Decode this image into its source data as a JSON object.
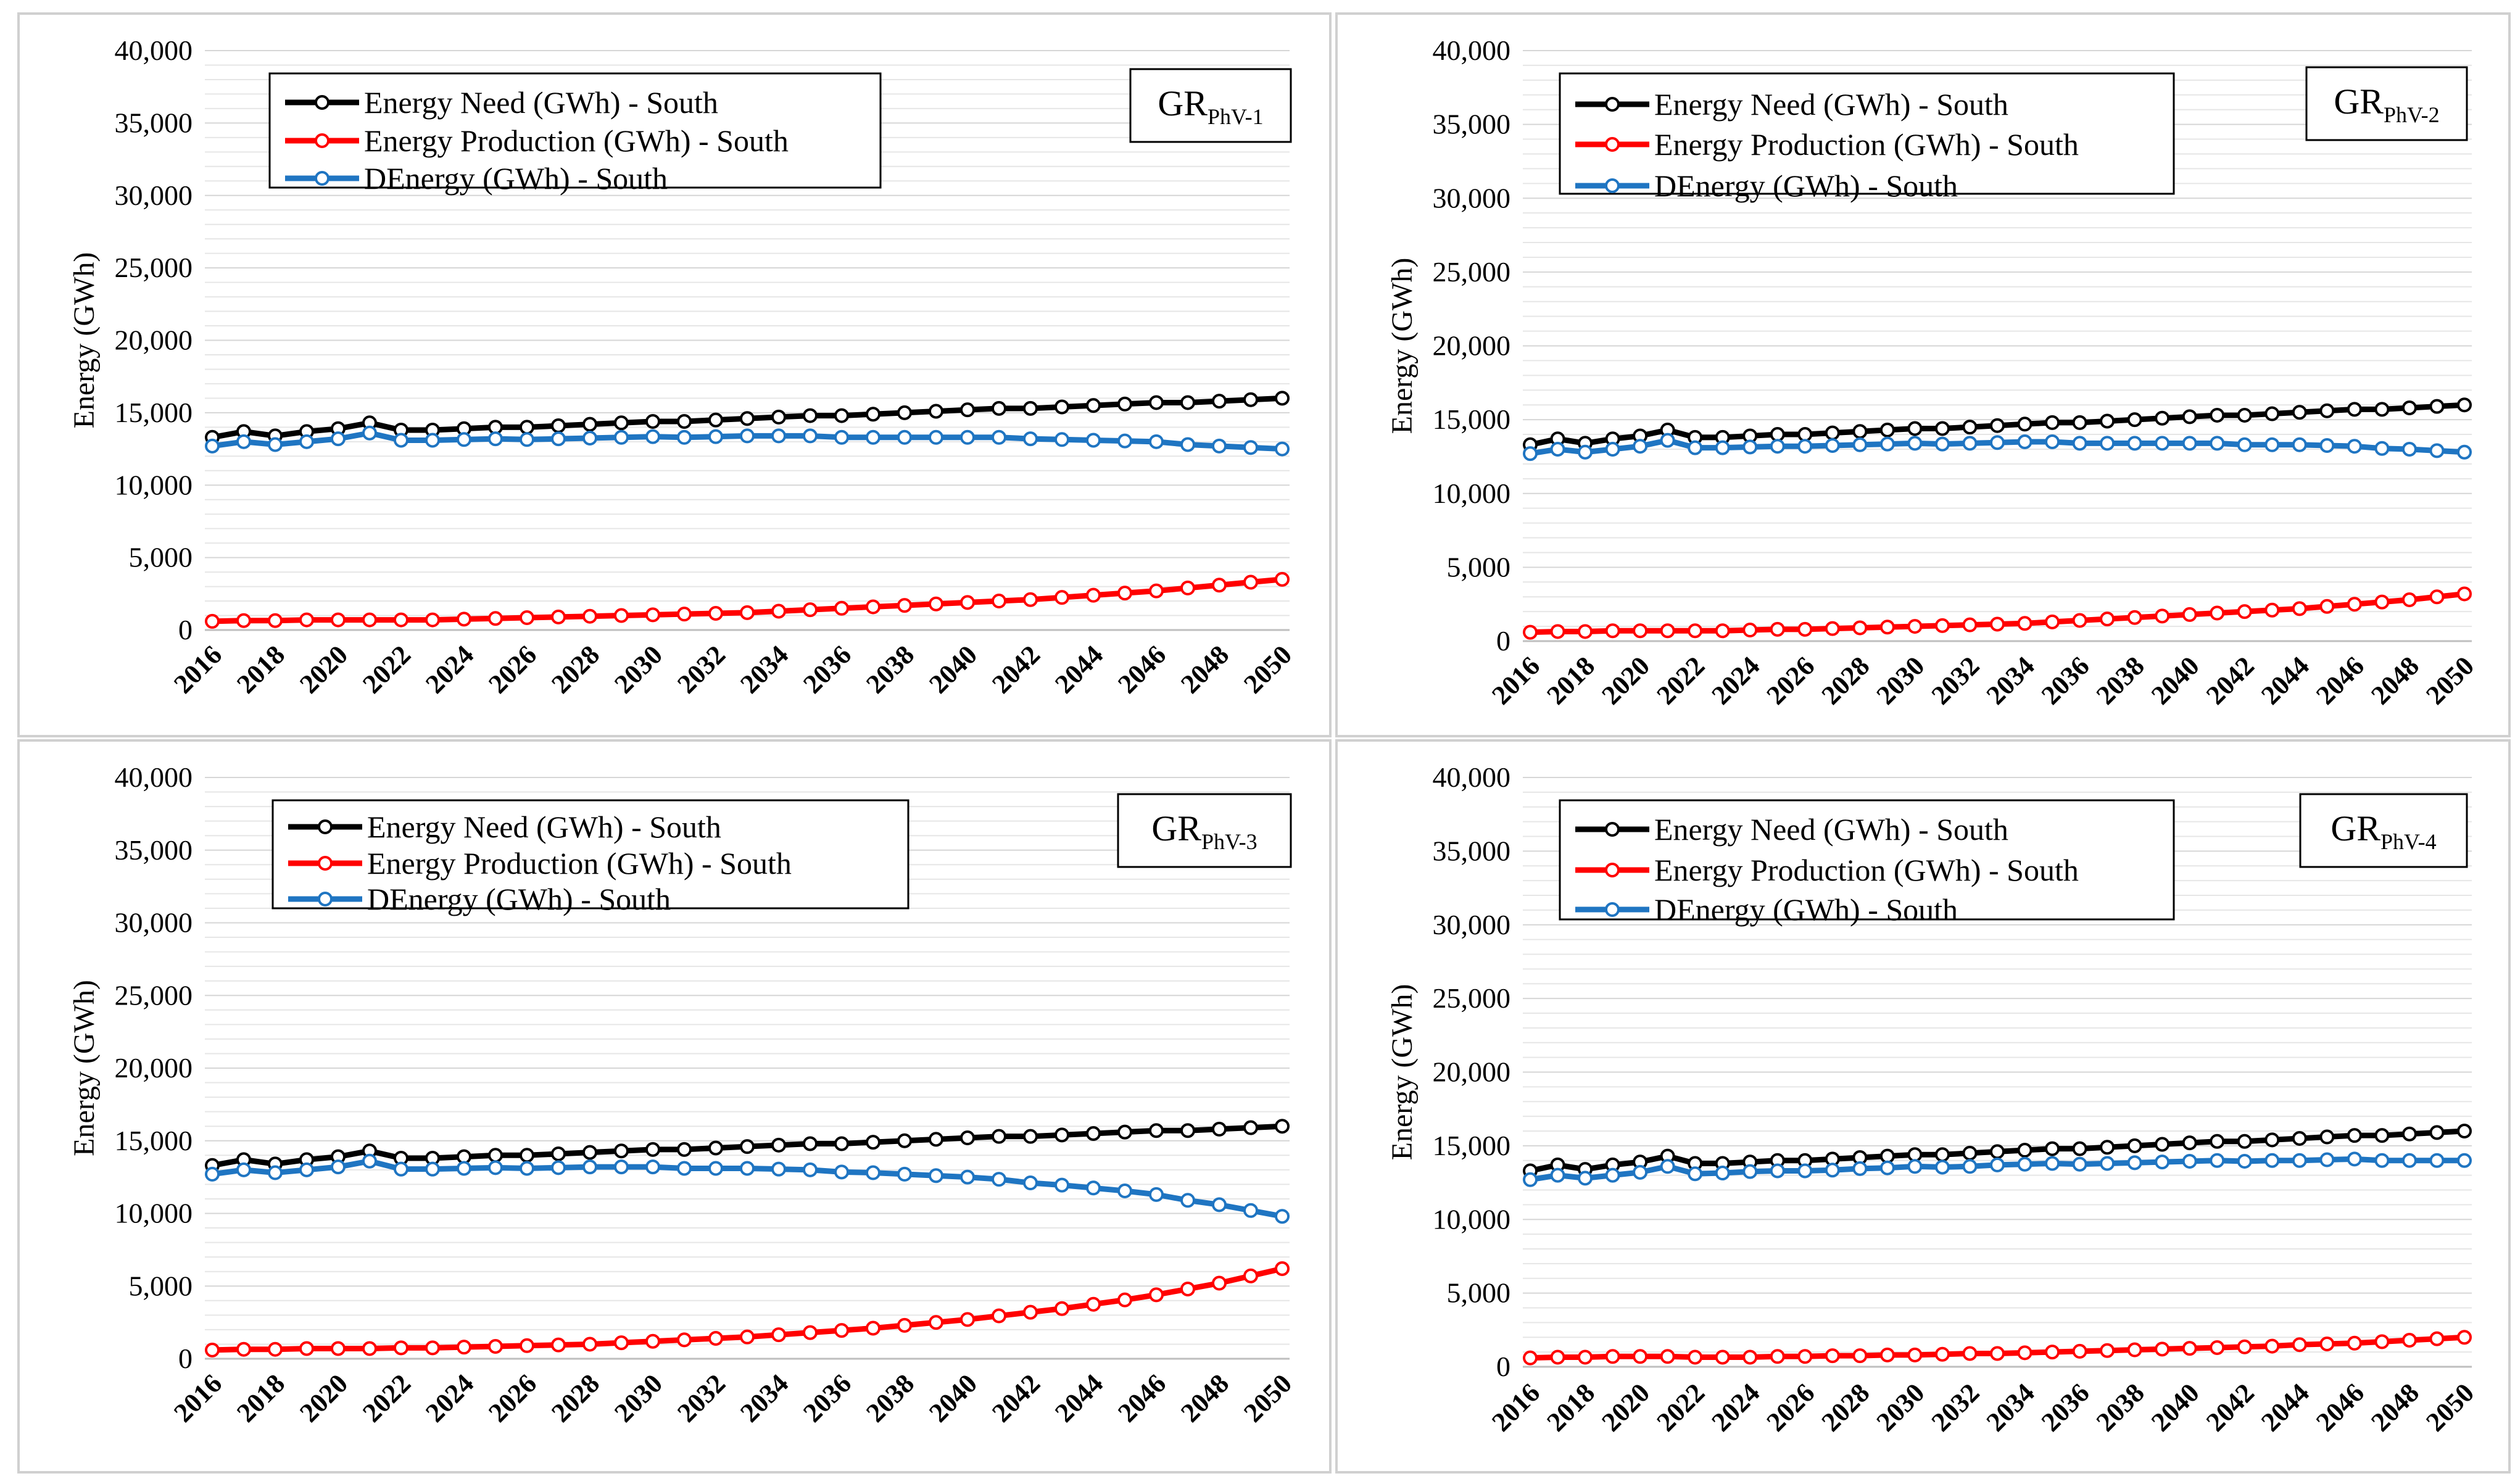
{
  "chart_data": [
    {
      "type": "line",
      "tag": {
        "main": "GR",
        "sub": "PhV-1"
      },
      "ylabel": "Energy (GWh)",
      "ylim": [
        0,
        40000
      ],
      "y_ticks": [
        "0",
        "5,000",
        "10,000",
        "15,000",
        "20,000",
        "25,000",
        "30,000",
        "35,000",
        "40,000"
      ],
      "x_ticks": [
        "2016",
        "2018",
        "2020",
        "2022",
        "2024",
        "2026",
        "2028",
        "2030",
        "2032",
        "2034",
        "2036",
        "2038",
        "2040",
        "2042",
        "2044",
        "2046",
        "2048",
        "2050"
      ],
      "grid": true,
      "legend_position": "top-left",
      "x": [
        2016,
        2017,
        2018,
        2019,
        2020,
        2021,
        2022,
        2023,
        2024,
        2025,
        2026,
        2027,
        2028,
        2029,
        2030,
        2031,
        2032,
        2033,
        2034,
        2035,
        2036,
        2037,
        2038,
        2039,
        2040,
        2041,
        2042,
        2043,
        2044,
        2045,
        2046,
        2047,
        2048,
        2049,
        2050
      ],
      "series": [
        {
          "name": "Energy Need (GWh) -  South",
          "color": "#000000",
          "values": [
            13300,
            13700,
            13400,
            13700,
            13900,
            14300,
            13800,
            13800,
            13900,
            14000,
            14000,
            14100,
            14200,
            14300,
            14400,
            14400,
            14500,
            14600,
            14700,
            14800,
            14800,
            14900,
            15000,
            15100,
            15200,
            15300,
            15300,
            15400,
            15500,
            15600,
            15700,
            15700,
            15800,
            15900,
            16000
          ]
        },
        {
          "name": "Energy Production (GWh) -  South",
          "color": "#ff0000",
          "values": [
            600,
            650,
            650,
            700,
            700,
            700,
            700,
            700,
            750,
            800,
            850,
            900,
            950,
            1000,
            1050,
            1100,
            1150,
            1200,
            1300,
            1400,
            1500,
            1600,
            1700,
            1800,
            1900,
            2000,
            2100,
            2250,
            2400,
            2550,
            2700,
            2900,
            3100,
            3300,
            3500
          ]
        },
        {
          "name": "DEnergy  (GWh) -  South",
          "color": "#1f75c2",
          "values": [
            12700,
            13000,
            12800,
            13000,
            13200,
            13600,
            13100,
            13100,
            13150,
            13200,
            13150,
            13200,
            13250,
            13300,
            13350,
            13300,
            13350,
            13400,
            13400,
            13400,
            13300,
            13300,
            13300,
            13300,
            13300,
            13300,
            13200,
            13150,
            13100,
            13050,
            13000,
            12800,
            12700,
            12600,
            12500
          ]
        }
      ]
    },
    {
      "type": "line",
      "tag": {
        "main": "GR",
        "sub": "PhV-2"
      },
      "ylabel": "Energy (GWh)",
      "ylim": [
        0,
        40000
      ],
      "y_ticks": [
        "0",
        "5,000",
        "10,000",
        "15,000",
        "20,000",
        "25,000",
        "30,000",
        "35,000",
        "40,000"
      ],
      "x_ticks": [
        "2016",
        "2018",
        "2020",
        "2022",
        "2024",
        "2026",
        "2028",
        "2030",
        "2032",
        "2034",
        "2036",
        "2038",
        "2040",
        "2042",
        "2044",
        "2046",
        "2048",
        "2050"
      ],
      "grid": true,
      "legend_position": "top-left",
      "x": [
        2016,
        2017,
        2018,
        2019,
        2020,
        2021,
        2022,
        2023,
        2024,
        2025,
        2026,
        2027,
        2028,
        2029,
        2030,
        2031,
        2032,
        2033,
        2034,
        2035,
        2036,
        2037,
        2038,
        2039,
        2040,
        2041,
        2042,
        2043,
        2044,
        2045,
        2046,
        2047,
        2048,
        2049,
        2050
      ],
      "series": [
        {
          "name": "Energy Need (GWh) -  South",
          "color": "#000000",
          "values": [
            13300,
            13700,
            13400,
            13700,
            13900,
            14300,
            13800,
            13800,
            13900,
            14000,
            14000,
            14100,
            14200,
            14300,
            14400,
            14400,
            14500,
            14600,
            14700,
            14800,
            14800,
            14900,
            15000,
            15100,
            15200,
            15300,
            15300,
            15400,
            15500,
            15600,
            15700,
            15700,
            15800,
            15900,
            16000
          ]
        },
        {
          "name": "Energy Production (GWh) -  South",
          "color": "#ff0000",
          "values": [
            600,
            650,
            650,
            700,
            700,
            700,
            700,
            700,
            750,
            800,
            800,
            850,
            900,
            950,
            1000,
            1050,
            1100,
            1150,
            1200,
            1300,
            1400,
            1500,
            1600,
            1700,
            1800,
            1900,
            2000,
            2100,
            2200,
            2350,
            2500,
            2650,
            2800,
            3000,
            3200
          ]
        },
        {
          "name": "DEnergy  (GWh) -  South",
          "color": "#1f75c2",
          "values": [
            12700,
            13000,
            12800,
            13000,
            13200,
            13600,
            13100,
            13100,
            13150,
            13200,
            13200,
            13250,
            13300,
            13350,
            13400,
            13350,
            13400,
            13450,
            13500,
            13500,
            13400,
            13400,
            13400,
            13400,
            13400,
            13400,
            13300,
            13300,
            13300,
            13250,
            13200,
            13050,
            13000,
            12900,
            12800
          ]
        }
      ]
    },
    {
      "type": "line",
      "tag": {
        "main": "GR",
        "sub": "PhV-3"
      },
      "ylabel": "Energy (GWh)",
      "ylim": [
        0,
        40000
      ],
      "y_ticks": [
        "0",
        "5,000",
        "10,000",
        "15,000",
        "20,000",
        "25,000",
        "30,000",
        "35,000",
        "40,000"
      ],
      "x_ticks": [
        "2016",
        "2018",
        "2020",
        "2022",
        "2024",
        "2026",
        "2028",
        "2030",
        "2032",
        "2034",
        "2036",
        "2038",
        "2040",
        "2042",
        "2044",
        "2046",
        "2048",
        "2050"
      ],
      "grid": true,
      "legend_position": "top-left",
      "x": [
        2016,
        2017,
        2018,
        2019,
        2020,
        2021,
        2022,
        2023,
        2024,
        2025,
        2026,
        2027,
        2028,
        2029,
        2030,
        2031,
        2032,
        2033,
        2034,
        2035,
        2036,
        2037,
        2038,
        2039,
        2040,
        2041,
        2042,
        2043,
        2044,
        2045,
        2046,
        2047,
        2048,
        2049,
        2050
      ],
      "series": [
        {
          "name": "Energy Need (GWh) -  South",
          "color": "#000000",
          "values": [
            13300,
            13700,
            13400,
            13700,
            13900,
            14300,
            13800,
            13800,
            13900,
            14000,
            14000,
            14100,
            14200,
            14300,
            14400,
            14400,
            14500,
            14600,
            14700,
            14800,
            14800,
            14900,
            15000,
            15100,
            15200,
            15300,
            15300,
            15400,
            15500,
            15600,
            15700,
            15700,
            15800,
            15900,
            16000
          ]
        },
        {
          "name": "Energy Production (GWh) -  South",
          "color": "#ff0000",
          "values": [
            600,
            650,
            650,
            700,
            700,
            700,
            750,
            750,
            800,
            850,
            900,
            950,
            1000,
            1100,
            1200,
            1300,
            1400,
            1500,
            1650,
            1800,
            1950,
            2100,
            2300,
            2500,
            2700,
            2950,
            3200,
            3450,
            3750,
            4050,
            4400,
            4800,
            5200,
            5700,
            6200
          ]
        },
        {
          "name": "DEnergy  (GWh) -  South",
          "color": "#1f75c2",
          "values": [
            12700,
            13000,
            12800,
            13000,
            13200,
            13600,
            13050,
            13050,
            13100,
            13150,
            13100,
            13150,
            13200,
            13200,
            13200,
            13100,
            13100,
            13100,
            13050,
            13000,
            12850,
            12800,
            12700,
            12600,
            12500,
            12350,
            12100,
            11950,
            11750,
            11550,
            11300,
            10900,
            10600,
            10200,
            9800
          ]
        }
      ]
    },
    {
      "type": "line",
      "tag": {
        "main": "GR",
        "sub": "PhV-4"
      },
      "ylabel": "Energy (GWh)",
      "ylim": [
        0,
        40000
      ],
      "y_ticks": [
        "0",
        "5,000",
        "10,000",
        "15,000",
        "20,000",
        "25,000",
        "30,000",
        "35,000",
        "40,000"
      ],
      "x_ticks": [
        "2016",
        "2018",
        "2020",
        "2022",
        "2024",
        "2026",
        "2028",
        "2030",
        "2032",
        "2034",
        "2036",
        "2038",
        "2040",
        "2042",
        "2044",
        "2046",
        "2048",
        "2050"
      ],
      "grid": true,
      "legend_position": "top-left",
      "x": [
        2016,
        2017,
        2018,
        2019,
        2020,
        2021,
        2022,
        2023,
        2024,
        2025,
        2026,
        2027,
        2028,
        2029,
        2030,
        2031,
        2032,
        2033,
        2034,
        2035,
        2036,
        2037,
        2038,
        2039,
        2040,
        2041,
        2042,
        2043,
        2044,
        2045,
        2046,
        2047,
        2048,
        2049,
        2050
      ],
      "series": [
        {
          "name": "Energy Need (GWh) -  South",
          "color": "#000000",
          "values": [
            13300,
            13700,
            13400,
            13700,
            13900,
            14300,
            13800,
            13800,
            13900,
            14000,
            14000,
            14100,
            14200,
            14300,
            14400,
            14400,
            14500,
            14600,
            14700,
            14800,
            14800,
            14900,
            15000,
            15100,
            15200,
            15300,
            15300,
            15400,
            15500,
            15600,
            15700,
            15700,
            15800,
            15900,
            16000
          ]
        },
        {
          "name": "Energy Production (GWh) -  South",
          "color": "#ff0000",
          "values": [
            600,
            650,
            650,
            700,
            700,
            700,
            650,
            650,
            650,
            700,
            700,
            750,
            750,
            800,
            800,
            850,
            900,
            900,
            950,
            1000,
            1050,
            1100,
            1150,
            1200,
            1250,
            1300,
            1350,
            1400,
            1500,
            1550,
            1600,
            1700,
            1800,
            1900,
            2000
          ]
        },
        {
          "name": "DEnergy  (GWh) -  South",
          "color": "#1f75c2",
          "values": [
            12700,
            13000,
            12800,
            13000,
            13200,
            13600,
            13100,
            13150,
            13250,
            13300,
            13300,
            13350,
            13450,
            13500,
            13600,
            13550,
            13600,
            13700,
            13750,
            13800,
            13750,
            13800,
            13850,
            13900,
            13950,
            14000,
            13950,
            14000,
            14000,
            14050,
            14100,
            14000,
            14000,
            14000,
            14000
          ]
        }
      ]
    }
  ]
}
